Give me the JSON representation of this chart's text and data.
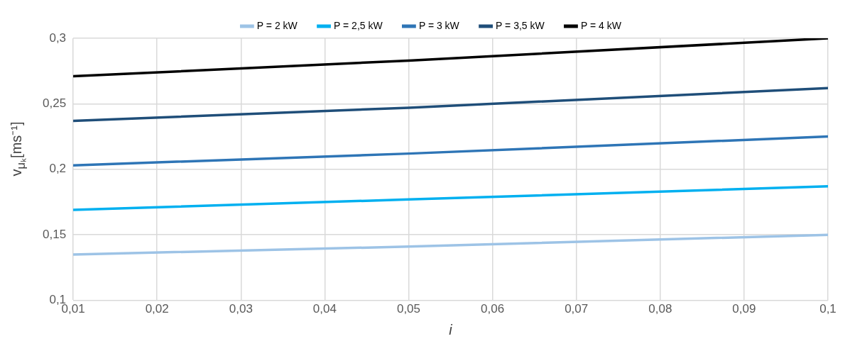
{
  "chart_data": {
    "type": "line",
    "xlabel": "i",
    "ylabel": "v$_{μₖ}$[ms⁻¹]",
    "x": [
      0.01,
      0.05,
      0.1
    ],
    "series": [
      {
        "name": "P = 2 kW",
        "color": "#9dc3e6",
        "values": [
          0.135,
          0.141,
          0.15
        ]
      },
      {
        "name": "P = 2,5 kW",
        "color": "#00b0f0",
        "values": [
          0.169,
          0.177,
          0.187
        ]
      },
      {
        "name": "P = 3 kW",
        "color": "#2e75b6",
        "values": [
          0.203,
          0.212,
          0.225
        ]
      },
      {
        "name": "P = 3,5 kW",
        "color": "#1f4e79",
        "values": [
          0.237,
          0.247,
          0.262
        ]
      },
      {
        "name": "P = 4 kW",
        "color": "#000000",
        "values": [
          0.271,
          0.283,
          0.3
        ]
      }
    ],
    "xlim": [
      0.01,
      0.1
    ],
    "xticks": [
      {
        "value": 0.01,
        "label": "0,01"
      },
      {
        "value": 0.02,
        "label": "0,02"
      },
      {
        "value": 0.03,
        "label": "0,03"
      },
      {
        "value": 0.04,
        "label": "0,04"
      },
      {
        "value": 0.05,
        "label": "0,05"
      },
      {
        "value": 0.06,
        "label": "0,06"
      },
      {
        "value": 0.07,
        "label": "0,07"
      },
      {
        "value": 0.08,
        "label": "0,08"
      },
      {
        "value": 0.09,
        "label": "0,09"
      },
      {
        "value": 0.1,
        "label": "0,1"
      }
    ],
    "ylim": [
      0.1,
      0.3
    ],
    "yticks": [
      {
        "value": 0.1,
        "label": "0,1"
      },
      {
        "value": 0.15,
        "label": "0,15"
      },
      {
        "value": 0.2,
        "label": "0,2"
      },
      {
        "value": 0.25,
        "label": "0,25"
      },
      {
        "value": 0.3,
        "label": "0,3"
      }
    ],
    "grid": true,
    "legend": "top",
    "marker": "none",
    "line_style": "solid"
  }
}
